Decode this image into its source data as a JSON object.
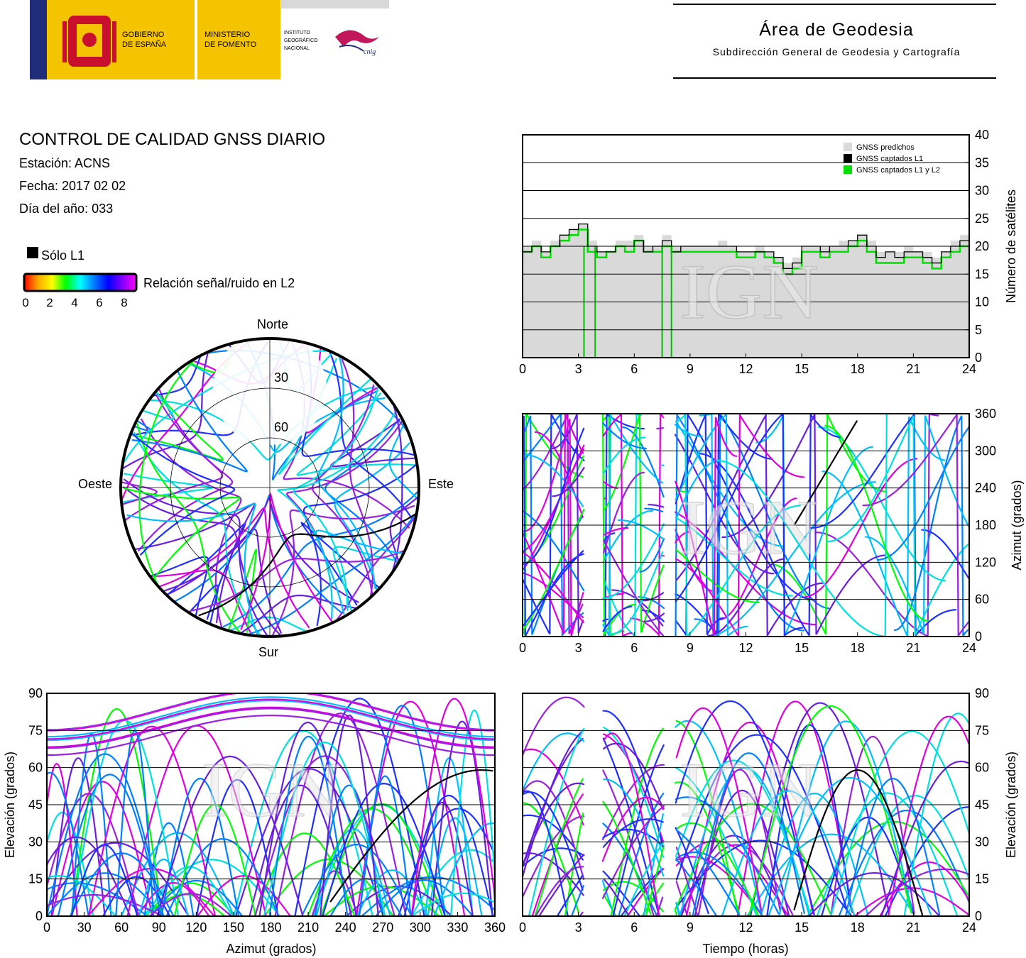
{
  "header": {
    "gobierno": [
      "GOBIERNO",
      "DE ESPAÑA"
    ],
    "ministerio": [
      "MINISTERIO",
      "DE FOMENTO"
    ],
    "instituto": [
      "INSTITUTO",
      "GEOGRÁFICO",
      "NACIONAL"
    ],
    "cnig": "cnig",
    "area_title": "Área de Geodesia",
    "area_subtitle": "Subdirección General de Geodesia y Cartografía",
    "colors": {
      "red": "#c8102e",
      "yellow": "#f5c400",
      "navy": "#1f2d7a",
      "magenta": "#c2185b"
    }
  },
  "info": {
    "title": "CONTROL DE CALIDAD GNSS DIARIO",
    "station": "Estación: ACNS",
    "date": "Fecha: 2017 02 02",
    "doy": "Día del año: 033"
  },
  "legend": {
    "solo_l1": "Sólo L1",
    "snr_label": "Relación señal/ruido en L2",
    "ticks": [
      "0",
      "2",
      "4",
      "6",
      "8"
    ],
    "gradient": [
      "#ff0000",
      "#ffa500",
      "#ffff00",
      "#00ff00",
      "#00ffff",
      "#0080ff",
      "#0000ff",
      "#8000ff",
      "#ff00ff"
    ]
  },
  "watermark": "IGN",
  "skyplot": {
    "north": "Norte",
    "south": "Sur",
    "east": "Este",
    "west": "Oeste",
    "ring_labels": [
      "30",
      "60"
    ]
  },
  "chart_data": [
    {
      "type": "line",
      "id": "satellite-count",
      "ylabel": "Número de satélites",
      "xlim": [
        0,
        24
      ],
      "ylim": [
        0,
        40
      ],
      "xticks": [
        "0",
        "3",
        "6",
        "9",
        "12",
        "15",
        "18",
        "21",
        "24"
      ],
      "yticks": [
        "0",
        "5",
        "10",
        "15",
        "20",
        "25",
        "30",
        "35",
        "40"
      ],
      "legend_position": "top-right",
      "series": [
        {
          "name": "GNSS predichos",
          "color": "#d9d9d9",
          "style": "area",
          "x": [
            0,
            0.5,
            1,
            1.5,
            2,
            2.5,
            3,
            3.5,
            4,
            4.5,
            5,
            5.5,
            6,
            6.5,
            7,
            7.5,
            8,
            8.5,
            9,
            9.5,
            10,
            10.5,
            11,
            11.5,
            12,
            12.5,
            13,
            13.5,
            14,
            14.5,
            15,
            15.5,
            16,
            16.5,
            17,
            17.5,
            18,
            18.5,
            19,
            19.5,
            20,
            20.5,
            21,
            21.5,
            22,
            22.5,
            23,
            23.5,
            24
          ],
          "y": [
            20,
            21,
            19,
            21,
            22,
            23,
            24,
            21,
            19,
            19,
            21,
            21,
            22,
            20,
            20,
            22,
            20,
            20,
            20,
            20,
            20,
            21,
            20,
            19,
            19,
            20,
            19,
            18,
            17,
            18,
            20,
            20,
            20,
            20,
            21,
            21,
            22,
            21,
            19,
            19,
            19,
            20,
            19,
            19,
            18,
            19,
            21,
            22,
            20
          ]
        },
        {
          "name": "GNSS captados L1",
          "color": "#000000",
          "style": "step",
          "x": [
            0,
            0.5,
            1,
            1.5,
            2,
            2.5,
            3,
            3.5,
            4,
            4.5,
            5,
            5.5,
            6,
            6.5,
            7,
            7.5,
            8,
            8.5,
            9,
            9.5,
            10,
            10.5,
            11,
            11.5,
            12,
            12.5,
            13,
            13.5,
            14,
            14.5,
            15,
            15.5,
            16,
            16.5,
            17,
            17.5,
            18,
            18.5,
            19,
            19.5,
            20,
            20.5,
            21,
            21.5,
            22,
            22.5,
            23,
            23.5,
            24
          ],
          "y": [
            19,
            20,
            19,
            20,
            22,
            23,
            24,
            20,
            19,
            19,
            20,
            20,
            21,
            19,
            20,
            21,
            19,
            20,
            20,
            20,
            20,
            20,
            20,
            19,
            19,
            19,
            19,
            18,
            16,
            17,
            20,
            20,
            19,
            20,
            20,
            21,
            22,
            20,
            18,
            19,
            18,
            19,
            19,
            18,
            17,
            19,
            20,
            21,
            19
          ]
        },
        {
          "name": "GNSS captados L1 y L2",
          "color": "#00e000",
          "style": "step",
          "x": [
            0,
            0.5,
            1,
            1.5,
            2,
            2.5,
            3,
            3.5,
            4,
            4.5,
            5,
            5.5,
            6,
            6.5,
            7,
            7.5,
            8,
            8.5,
            9,
            9.5,
            10,
            10.5,
            11,
            11.5,
            12,
            12.5,
            13,
            13.5,
            14,
            14.5,
            15,
            15.5,
            16,
            16.5,
            17,
            17.5,
            18,
            18.5,
            19,
            19.5,
            20,
            20.5,
            21,
            21.5,
            22,
            22.5,
            23,
            23.5,
            24
          ],
          "y": [
            19,
            20,
            18,
            20,
            21,
            22,
            23,
            19,
            18,
            19,
            20,
            19,
            21,
            19,
            19,
            20,
            19,
            19,
            19,
            19,
            19,
            19,
            19,
            18,
            18,
            19,
            18,
            17,
            15,
            16,
            19,
            19,
            18,
            19,
            19,
            20,
            21,
            19,
            17,
            17,
            17,
            18,
            18,
            17,
            16,
            18,
            19,
            20,
            18
          ]
        }
      ],
      "gaps": [
        [
          3.3,
          3.9
        ],
        [
          7.5,
          8.0
        ]
      ]
    },
    {
      "type": "scatter",
      "id": "azimuth-time",
      "ylabel": "Azimut (grados)",
      "xlim": [
        0,
        24
      ],
      "ylim": [
        0,
        360
      ],
      "xticks": [
        "0",
        "3",
        "6",
        "9",
        "12",
        "15",
        "18",
        "21",
        "24"
      ],
      "yticks": [
        "0",
        "60",
        "120",
        "180",
        "240",
        "300",
        "360"
      ]
    },
    {
      "type": "scatter",
      "id": "elevation-azimuth",
      "xlabel": "Azimut (grados)",
      "ylabel": "Elevación (grados)",
      "xlim": [
        0,
        360
      ],
      "ylim": [
        0,
        90
      ],
      "xticks": [
        "0",
        "30",
        "60",
        "90",
        "120",
        "150",
        "180",
        "210",
        "240",
        "270",
        "300",
        "330",
        "360"
      ],
      "yticks": [
        "0",
        "15",
        "30",
        "45",
        "60",
        "75",
        "90"
      ]
    },
    {
      "type": "scatter",
      "id": "elevation-time",
      "xlabel": "Tiempo (horas)",
      "ylabel": "Elevación (grados)",
      "xlim": [
        0,
        24
      ],
      "ylim": [
        0,
        90
      ],
      "xticks": [
        "0",
        "3",
        "6",
        "9",
        "12",
        "15",
        "18",
        "21",
        "24"
      ],
      "yticks": [
        "0",
        "15",
        "30",
        "45",
        "60",
        "75",
        "90"
      ]
    }
  ]
}
